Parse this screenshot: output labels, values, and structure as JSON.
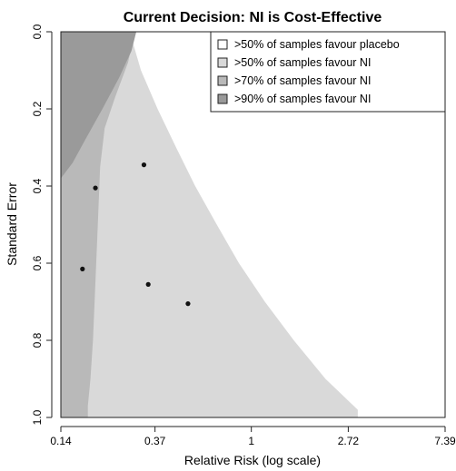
{
  "chart_data": {
    "type": "heatmap",
    "title": "Current Decision: NI is Cost-Effective",
    "xlabel": "Relative Risk (log scale)",
    "ylabel": "Standard Error",
    "x_scale": "log",
    "x_ticks": [
      {
        "value": 0.14,
        "label": "0.14"
      },
      {
        "value": 0.37,
        "label": "0.37"
      },
      {
        "value": 1,
        "label": "1"
      },
      {
        "value": 2.72,
        "label": "2.72"
      },
      {
        "value": 7.39,
        "label": "7.39"
      }
    ],
    "y_ticks": [
      {
        "value": 0.0,
        "label": "0.0"
      },
      {
        "value": 0.2,
        "label": "0.2"
      },
      {
        "value": 0.4,
        "label": "0.4"
      },
      {
        "value": 0.6,
        "label": "0.6"
      },
      {
        "value": 0.8,
        "label": "0.8"
      },
      {
        "value": 1.0,
        "label": "1.0"
      }
    ],
    "xlim": [
      0.14,
      7.39
    ],
    "ylim": [
      0.0,
      1.0
    ],
    "y_reversed": true,
    "legend_position": "top-right",
    "legend": [
      {
        "label": ">50% of samples favour placebo",
        "color": "#ffffff"
      },
      {
        "label": ">50% of samples favour NI",
        "color": "#d9d9d9"
      },
      {
        "label": ">70% of samples favour NI",
        "color": "#b9b9b9"
      },
      {
        "label": ">90% of samples favour NI",
        "color": "#9a9a9a"
      }
    ],
    "regions": [
      {
        "label": ">50% of samples favour NI",
        "color": "#d9d9d9",
        "boundary": [
          [
            0.285,
            0.0
          ],
          [
            0.32,
            0.1
          ],
          [
            0.38,
            0.2
          ],
          [
            0.46,
            0.3
          ],
          [
            0.56,
            0.4
          ],
          [
            0.7,
            0.5
          ],
          [
            0.88,
            0.6
          ],
          [
            1.15,
            0.7
          ],
          [
            1.55,
            0.8
          ],
          [
            2.15,
            0.9
          ],
          [
            3.0,
            0.98
          ]
        ]
      },
      {
        "label": ">70% of samples favour NI",
        "color": "#b9b9b9",
        "boundary": [
          [
            0.3,
            0.0
          ],
          [
            0.28,
            0.08
          ],
          [
            0.245,
            0.17
          ],
          [
            0.22,
            0.25
          ],
          [
            0.21,
            0.35
          ],
          [
            0.205,
            0.5
          ],
          [
            0.2,
            0.65
          ],
          [
            0.195,
            0.8
          ],
          [
            0.19,
            0.9
          ],
          [
            0.185,
            0.97
          ]
        ]
      },
      {
        "label": ">90% of samples favour NI",
        "color": "#9a9a9a",
        "boundary": [
          [
            0.305,
            0.0
          ],
          [
            0.29,
            0.05
          ],
          [
            0.255,
            0.12
          ],
          [
            0.215,
            0.2
          ],
          [
            0.18,
            0.28
          ],
          [
            0.158,
            0.34
          ],
          [
            0.14,
            0.38
          ]
        ]
      }
    ],
    "series": [
      {
        "type": "scatter",
        "color": "#111111",
        "points": [
          {
            "x": 0.33,
            "y": 0.345
          },
          {
            "x": 0.2,
            "y": 0.405
          },
          {
            "x": 0.175,
            "y": 0.615
          },
          {
            "x": 0.345,
            "y": 0.655
          },
          {
            "x": 0.52,
            "y": 0.705
          }
        ]
      }
    ]
  }
}
